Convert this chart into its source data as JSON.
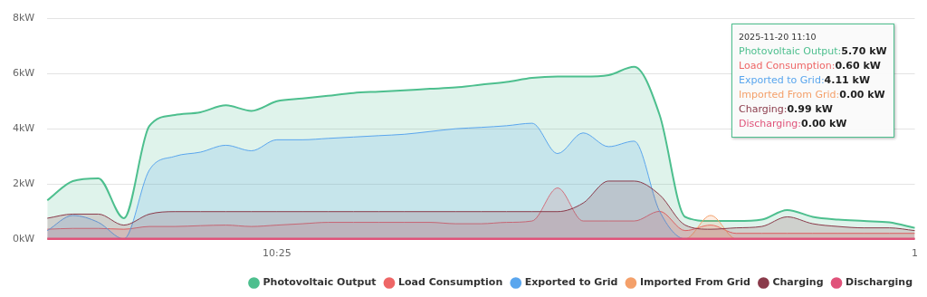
{
  "chart_data": {
    "type": "area",
    "categories": [
      null,
      null,
      null,
      null,
      null,
      null,
      null,
      null,
      null,
      "10:25",
      null,
      null,
      null,
      null,
      null,
      null,
      null,
      null,
      null,
      null,
      null,
      null,
      null,
      null,
      null,
      null,
      null,
      null,
      null,
      null,
      null,
      null,
      null,
      null,
      "1"
    ],
    "series": [
      {
        "name": "Photovoltaic Output",
        "color": "#4dbf8e",
        "values": [
          1.4,
          2.1,
          2.2,
          0.75,
          4.1,
          4.5,
          4.6,
          4.85,
          4.65,
          5.0,
          5.1,
          5.2,
          5.3,
          5.35,
          5.4,
          5.45,
          5.5,
          5.6,
          5.7,
          5.85,
          5.9,
          5.9,
          5.95,
          6.25,
          4.5,
          0.8,
          0.65,
          0.65,
          0.7,
          1.05,
          0.8,
          0.7,
          0.65,
          0.6,
          0.4
        ]
      },
      {
        "name": "Load Consumption",
        "color": "#ee6666",
        "values": [
          0.35,
          0.38,
          0.38,
          0.35,
          0.45,
          0.45,
          0.48,
          0.5,
          0.45,
          0.5,
          0.55,
          0.6,
          0.6,
          0.6,
          0.6,
          0.6,
          0.55,
          0.55,
          0.6,
          0.65,
          1.85,
          0.65,
          0.65,
          0.65,
          1.0,
          0.3,
          0.5,
          0.2,
          0.2,
          0.2,
          0.2,
          0.2,
          0.2,
          0.2,
          0.2
        ]
      },
      {
        "name": "Exported to Grid",
        "color": "#5aa6ee",
        "values": [
          0.3,
          0.85,
          0.6,
          0,
          2.5,
          3.0,
          3.15,
          3.4,
          3.2,
          3.6,
          3.6,
          3.65,
          3.7,
          3.75,
          3.8,
          3.9,
          4.0,
          4.05,
          4.11,
          4.2,
          3.1,
          3.85,
          3.35,
          3.55,
          1.0,
          0,
          0,
          0,
          0,
          0,
          0,
          0,
          0,
          0,
          0
        ]
      },
      {
        "name": "Imported From Grid",
        "color": "#f4a06a",
        "values": [
          0,
          0,
          0,
          0,
          0,
          0,
          0,
          0,
          0,
          0,
          0,
          0,
          0,
          0,
          0,
          0,
          0,
          0,
          0,
          0,
          0,
          0,
          0,
          0,
          0,
          0,
          0.85,
          0,
          0,
          0,
          0,
          0,
          0,
          0,
          0
        ]
      },
      {
        "name": "Charging",
        "color": "#8a3a4a",
        "values": [
          0.75,
          0.9,
          0.9,
          0.5,
          0.9,
          0.99,
          0.99,
          0.99,
          0.99,
          0.99,
          0.99,
          0.99,
          0.99,
          0.99,
          0.99,
          0.99,
          0.99,
          0.99,
          0.99,
          0.99,
          0.99,
          1.3,
          2.1,
          2.1,
          1.6,
          0.5,
          0.35,
          0.4,
          0.45,
          0.8,
          0.55,
          0.45,
          0.4,
          0.4,
          0.3
        ]
      },
      {
        "name": "Discharging",
        "type": "line",
        "color": "#e0527a",
        "values": [
          0,
          0,
          0,
          0,
          0,
          0,
          0,
          0,
          0,
          0,
          0,
          0,
          0,
          0,
          0,
          0,
          0,
          0,
          0,
          0,
          0,
          0,
          0,
          0,
          0,
          0,
          0,
          0,
          0,
          0,
          0,
          0,
          0,
          0,
          0
        ]
      }
    ],
    "ylim": [
      0,
      8
    ],
    "yticks": [
      {
        "value": 0,
        "label": "0kW"
      },
      {
        "value": 2,
        "label": "2kW"
      },
      {
        "value": 4,
        "label": "4kW"
      },
      {
        "value": 6,
        "label": "6kW"
      },
      {
        "value": 8,
        "label": "8kW"
      }
    ],
    "grid": "y",
    "legend": "bottom right",
    "annotations": [
      "2025-11-20 11:10",
      "Photovoltaic Output:5.70 kW",
      "Load Consumption:0.60 kW",
      "Exported to Grid:4.11 kW",
      "Imported From Grid:0.00 kW",
      "Charging:0.99 kW",
      "Discharging:0.00 kW"
    ]
  }
}
